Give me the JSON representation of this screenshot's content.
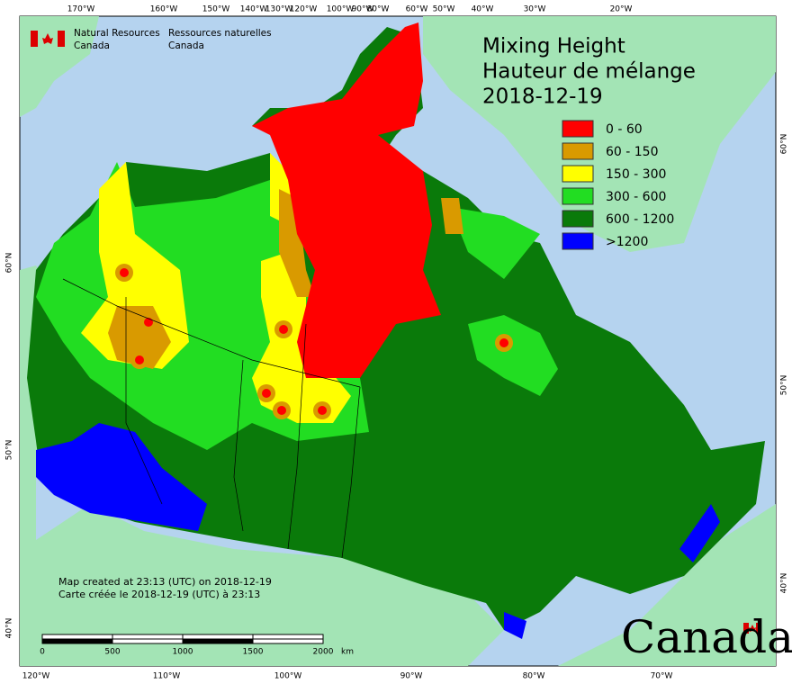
{
  "header": {
    "agency_en": [
      "Natural Resources",
      "Canada"
    ],
    "agency_fr": [
      "Ressources naturelles",
      "Canada"
    ]
  },
  "title": [
    "Mixing Height",
    "Hauteur de mélange",
    "2018-12-19"
  ],
  "legend": [
    {
      "label": "0 - 60",
      "color": "#ff0000"
    },
    {
      "label": "60 - 150",
      "color": "#d99a00"
    },
    {
      "label": "150 - 300",
      "color": "#ffff00"
    },
    {
      "label": "300 - 600",
      "color": "#22dd22"
    },
    {
      "label": "600 - 1200",
      "color": "#0a7a0a"
    },
    {
      "label": ">1200",
      "color": "#0000ff"
    }
  ],
  "longitude_top": [
    "170°W",
    "160°W",
    "150°W",
    "140°W",
    "130°W",
    "120°W",
    "100°W",
    "90°W",
    "80°W",
    "60°W",
    "50°W",
    "40°W",
    "30°W",
    "20°W"
  ],
  "longitude_bottom": [
    "120°W",
    "110°W",
    "100°W",
    "90°W",
    "80°W",
    "70°W"
  ],
  "latitude_left": [
    "60°N",
    "50°N",
    "40°N"
  ],
  "latitude_right": [
    "60°N",
    "50°N",
    "40°N"
  ],
  "credits": [
    "Map created at 23:13 (UTC) on 2018-12-19",
    "Carte créée le 2018-12-19 (UTC) à 23:13"
  ],
  "scale_bar": {
    "labels": [
      "0",
      "500",
      "1000",
      "1500",
      "2000"
    ],
    "unit": "km"
  },
  "wordmark": "Canada"
}
